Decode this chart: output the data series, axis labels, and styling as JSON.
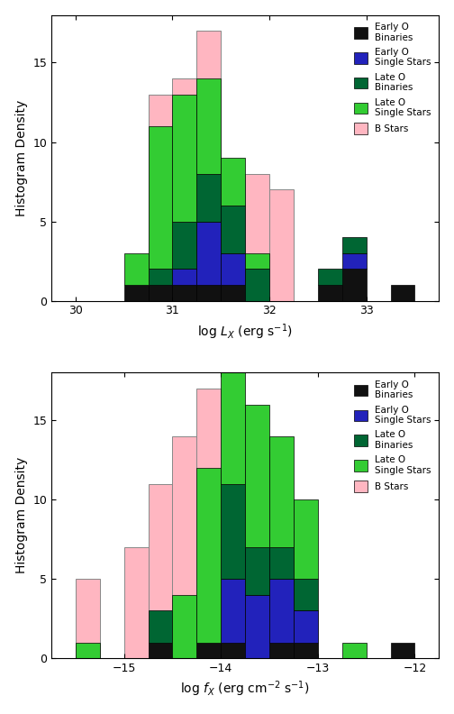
{
  "panel1": {
    "xlabel": "log $L_X$ (erg s$^{-1}$)",
    "ylabel": "Histogram Density",
    "xlim": [
      29.75,
      33.75
    ],
    "ylim": [
      0,
      18
    ],
    "yticks": [
      0,
      5,
      10,
      15
    ],
    "xticks": [
      30,
      31,
      32,
      33
    ],
    "bin_width": 0.25,
    "bins": [
      30.25,
      30.5,
      30.75,
      31.0,
      31.25,
      31.5,
      31.75,
      32.0,
      32.25,
      32.5,
      32.75,
      33.0,
      33.25,
      33.5
    ],
    "categories": {
      "b_stars": {
        "color": "#ffb6c1",
        "label": "B Stars",
        "values": [
          0,
          0,
          13,
          14,
          17,
          8,
          8,
          7,
          0,
          0,
          0,
          0,
          0,
          0
        ]
      },
      "late_o_singles": {
        "color": "#33cc33",
        "label": "Late O\nSingle Stars",
        "values": [
          0,
          2,
          9,
          8,
          6,
          3,
          1,
          0,
          0,
          0,
          0,
          0,
          0,
          0
        ]
      },
      "late_o_binaries": {
        "color": "#006633",
        "label": "Late O\nBinaries",
        "values": [
          0,
          0,
          1,
          3,
          3,
          3,
          2,
          0,
          0,
          1,
          1,
          0,
          0,
          0
        ]
      },
      "early_o_singles": {
        "color": "#2222bb",
        "label": "Early O\nSingle Stars",
        "values": [
          0,
          0,
          0,
          1,
          4,
          2,
          0,
          0,
          0,
          0,
          1,
          0,
          0,
          0
        ]
      },
      "early_o_binaries": {
        "color": "#111111",
        "label": "Early O\nBinaries",
        "values": [
          0,
          1,
          1,
          1,
          1,
          1,
          0,
          0,
          0,
          1,
          2,
          0,
          1,
          0
        ]
      }
    },
    "stack_order": [
      "early_o_binaries",
      "early_o_singles",
      "late_o_binaries",
      "late_o_singles"
    ],
    "background_cat": "b_stars"
  },
  "panel2": {
    "xlabel": "log $f_X$ (erg cm$^{-2}$ s$^{-1}$)",
    "ylabel": "Histogram Density",
    "xlim": [
      -15.75,
      -11.75
    ],
    "ylim": [
      0,
      18
    ],
    "yticks": [
      0,
      5,
      10,
      15
    ],
    "xticks": [
      -15,
      -14,
      -13,
      -12
    ],
    "bin_width": 0.25,
    "bins": [
      -15.5,
      -15.25,
      -15.0,
      -14.75,
      -14.5,
      -14.25,
      -14.0,
      -13.75,
      -13.5,
      -13.25,
      -13.0,
      -12.75,
      -12.5,
      -12.25
    ],
    "categories": {
      "b_stars": {
        "color": "#ffb6c1",
        "label": "B Stars",
        "values": [
          5,
          0,
          7,
          11,
          14,
          17,
          13,
          13,
          8,
          3,
          0,
          0,
          0,
          0
        ]
      },
      "late_o_singles": {
        "color": "#33cc33",
        "label": "Late O\nSingle Stars",
        "values": [
          1,
          0,
          0,
          0,
          4,
          11,
          11,
          9,
          7,
          5,
          0,
          1,
          0,
          0
        ]
      },
      "late_o_binaries": {
        "color": "#006633",
        "label": "Late O\nBinaries",
        "values": [
          0,
          0,
          0,
          2,
          0,
          0,
          6,
          3,
          2,
          2,
          0,
          0,
          0,
          0
        ]
      },
      "early_o_singles": {
        "color": "#2222bb",
        "label": "Early O\nSingle Stars",
        "values": [
          0,
          0,
          0,
          0,
          0,
          0,
          4,
          4,
          4,
          2,
          0,
          0,
          0,
          0
        ]
      },
      "early_o_binaries": {
        "color": "#111111",
        "label": "Early O\nBinaries",
        "values": [
          0,
          0,
          0,
          1,
          0,
          1,
          1,
          0,
          1,
          1,
          0,
          0,
          0,
          1
        ]
      }
    },
    "stack_order": [
      "early_o_binaries",
      "early_o_singles",
      "late_o_binaries",
      "late_o_singles"
    ],
    "background_cat": "b_stars"
  },
  "legend_order": [
    "early_o_binaries",
    "early_o_singles",
    "late_o_binaries",
    "late_o_singles",
    "b_stars"
  ],
  "figure_bg": "#ffffff"
}
